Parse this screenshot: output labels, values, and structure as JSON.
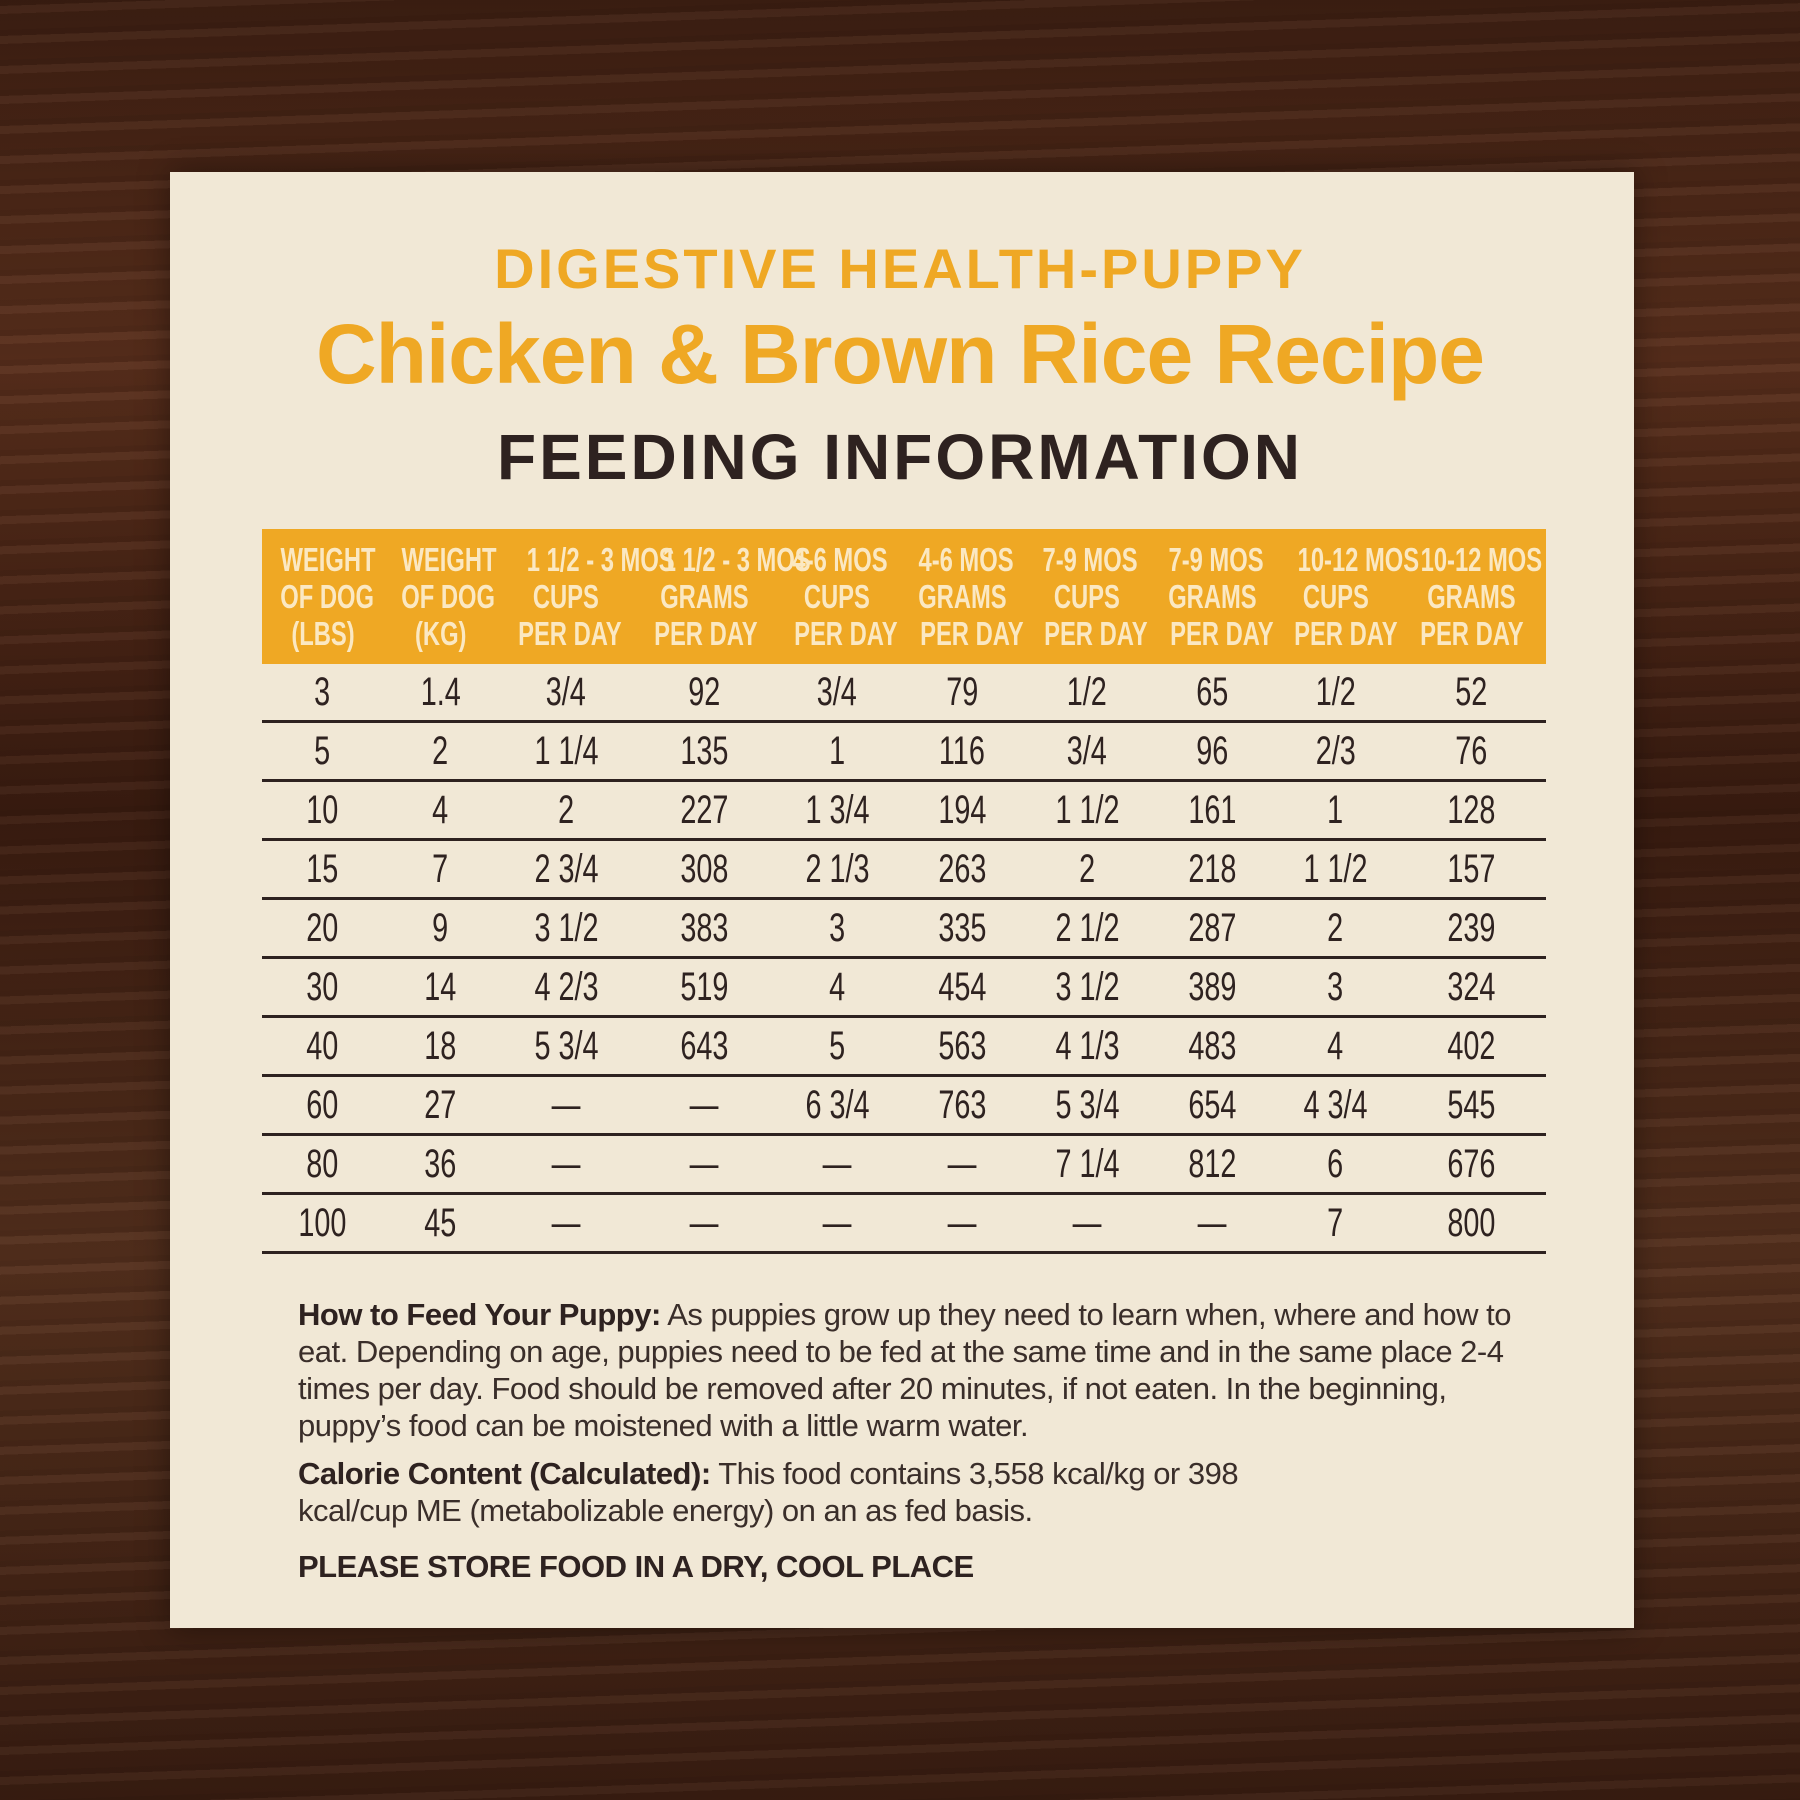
{
  "title_line1": "DIGESTIVE HEALTH-PUPPY",
  "title_line2": "Chicken & Brown Rice Recipe",
  "title_line3": "FEEDING INFORMATION",
  "table": {
    "headers": [
      [
        "WEIGHT",
        "OF DOG",
        "(LBS)"
      ],
      [
        "WEIGHT",
        "OF DOG",
        "(KG)"
      ],
      [
        "1 1/2 - 3 MOS",
        "CUPS",
        "PER DAY"
      ],
      [
        "1 1/2 - 3 MOS",
        "GRAMS",
        "PER DAY"
      ],
      [
        "4-6 MOS",
        "CUPS",
        "PER DAY"
      ],
      [
        "4-6 MOS",
        "GRAMS",
        "PER DAY"
      ],
      [
        "7-9 MOS",
        "CUPS",
        "PER DAY"
      ],
      [
        "7-9 MOS",
        "GRAMS",
        "PER DAY"
      ],
      [
        "10-12 MOS",
        "CUPS",
        "PER DAY"
      ],
      [
        "10-12 MOS",
        "GRAMS",
        "PER DAY"
      ]
    ],
    "rows": [
      [
        "3",
        "1.4",
        "3/4",
        "92",
        "3/4",
        "79",
        "1/2",
        "65",
        "1/2",
        "52"
      ],
      [
        "5",
        "2",
        "1 1/4",
        "135",
        "1",
        "116",
        "3/4",
        "96",
        "2/3",
        "76"
      ],
      [
        "10",
        "4",
        "2",
        "227",
        "1 3/4",
        "194",
        "1 1/2",
        "161",
        "1",
        "128"
      ],
      [
        "15",
        "7",
        "2 3/4",
        "308",
        "2 1/3",
        "263",
        "2",
        "218",
        "1 1/2",
        "157"
      ],
      [
        "20",
        "9",
        "3 1/2",
        "383",
        "3",
        "335",
        "2 1/2",
        "287",
        "2",
        "239"
      ],
      [
        "30",
        "14",
        "4 2/3",
        "519",
        "4",
        "454",
        "3 1/2",
        "389",
        "3",
        "324"
      ],
      [
        "40",
        "18",
        "5 3/4",
        "643",
        "5",
        "563",
        "4 1/3",
        "483",
        "4",
        "402"
      ],
      [
        "60",
        "27",
        "—",
        "—",
        "6 3/4",
        "763",
        "5 3/4",
        "654",
        "4 3/4",
        "545"
      ],
      [
        "80",
        "36",
        "—",
        "—",
        "—",
        "—",
        "7 1/4",
        "812",
        "6",
        "676"
      ],
      [
        "100",
        "45",
        "—",
        "—",
        "—",
        "—",
        "—",
        "—",
        "7",
        "800"
      ]
    ]
  },
  "feed": {
    "label": "How to Feed Your Puppy:",
    "text": " As puppies grow up they need to learn when, where and how to eat. Depending on age, puppies need to be fed at the same time and in the same place 2-4 times per day. Food should be removed after 20 minutes, if not eaten. In the beginning, puppy’s food can be moistened with a little warm water."
  },
  "calorie": {
    "label": "Calorie Content (Calculated):",
    "text": " This food contains 3,558 kcal/kg or 398 kcal/cup ME (metabolizable energy) on an as fed basis."
  },
  "storage": "PLEASE STORE FOOD IN A DRY, COOL PLACE"
}
